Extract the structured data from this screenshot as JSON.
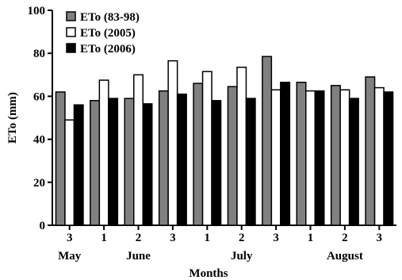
{
  "chart_data": {
    "type": "bar",
    "ylabel": "ETo (mm)",
    "xlabel": "Months",
    "ylim": [
      0,
      100
    ],
    "yticks": [
      0,
      20,
      40,
      60,
      80,
      100
    ],
    "legend_position": "top-left",
    "categories": [
      "3",
      "1",
      "2",
      "3",
      "1",
      "2",
      "3",
      "1",
      "2",
      "3"
    ],
    "month_labels": [
      {
        "label": "May",
        "at": 0
      },
      {
        "label": "June",
        "at": 2
      },
      {
        "label": "July",
        "at": 5
      },
      {
        "label": "August",
        "at": 8
      }
    ],
    "series": [
      {
        "name": "ETo (83-98)",
        "color": "#808080",
        "values": [
          62,
          58,
          59,
          62.5,
          66,
          64.5,
          78.5,
          66.5,
          65,
          69
        ]
      },
      {
        "name": "ETo (2005)",
        "color": "#ffffff",
        "values": [
          49,
          67.5,
          70,
          76.5,
          71.5,
          73.5,
          63,
          62.5,
          63,
          64
        ]
      },
      {
        "name": "ETo (2006)",
        "color": "#000000",
        "values": [
          56,
          59,
          56.5,
          61,
          58,
          59,
          66.5,
          62.5,
          59,
          62
        ]
      }
    ]
  }
}
